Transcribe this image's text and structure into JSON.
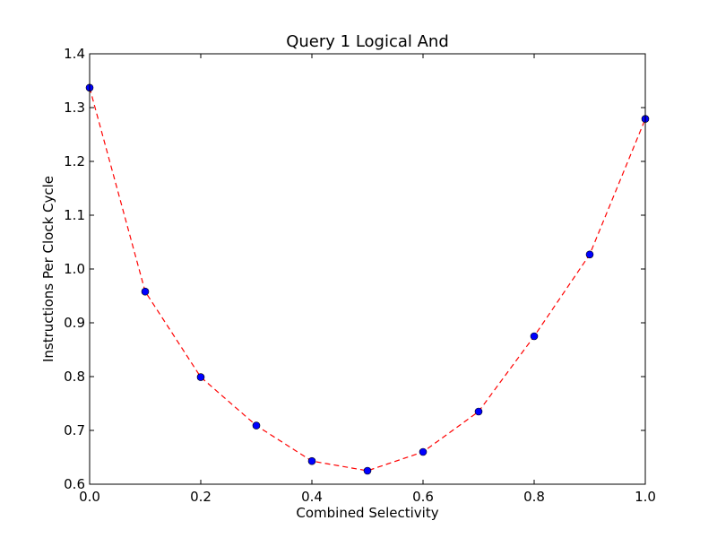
{
  "chart_data": {
    "type": "line",
    "title": "Query 1 Logical And",
    "xlabel": "Combined Selectivity",
    "ylabel": "Instructions Per Clock Cycle",
    "xlim": [
      0.0,
      1.0
    ],
    "ylim": [
      0.6,
      1.4
    ],
    "xticks": [
      "0.0",
      "0.2",
      "0.4",
      "0.6",
      "0.8",
      "1.0"
    ],
    "yticks": [
      "0.6",
      "0.7",
      "0.8",
      "0.9",
      "1.0",
      "1.1",
      "1.2",
      "1.3",
      "1.4"
    ],
    "grid": false,
    "series": [
      {
        "x": [
          0.0,
          0.1,
          0.2,
          0.3,
          0.4,
          0.5,
          0.6,
          0.7,
          0.8,
          0.9,
          1.0
        ],
        "y": [
          1.337,
          0.958,
          0.799,
          0.709,
          0.643,
          0.625,
          0.66,
          0.735,
          0.875,
          1.027,
          1.279
        ],
        "line_color": "#ff0000",
        "line_style": "dashed",
        "marker": "circle",
        "marker_color": "#0000ff"
      }
    ]
  }
}
